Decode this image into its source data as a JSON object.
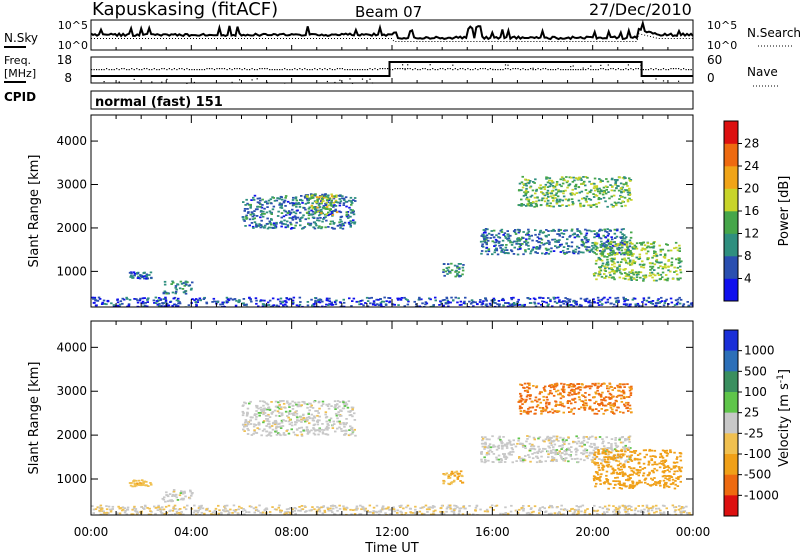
{
  "header": {
    "station": "Kapuskasing (fitACF)",
    "beam": "Beam 07",
    "date": "27/Dec/2010"
  },
  "noise_panel": {
    "left_label": "N.Sky",
    "right_label": "N.Search",
    "left_ticks": [
      "10^5",
      "10^0"
    ],
    "right_ticks": [
      "10^5",
      "10^0"
    ]
  },
  "freq_panel": {
    "left_label_1": "Freq.",
    "left_label_2": "[MHz]",
    "left_ticks": [
      "18",
      "8"
    ],
    "right_ticks": [
      "60",
      "0"
    ],
    "right_label": "Nave",
    "cpid_label": "CPID",
    "mode_text": "normal (fast) 151"
  },
  "chart_data": [
    {
      "type": "heatmap",
      "title": "",
      "xlabel": "Time UT",
      "ylabel": "Slant Range [km]",
      "x_ticks": [
        "00:00",
        "04:00",
        "08:00",
        "12:00",
        "16:00",
        "20:00",
        "00:00"
      ],
      "x_range_hours": [
        0,
        24
      ],
      "y_ticks": [
        1000,
        2000,
        3000,
        4000
      ],
      "ylim": [
        180,
        4600
      ],
      "colorbar": {
        "label": "Power [dB]",
        "ticks": [
          "4",
          "8",
          "12",
          "16",
          "20",
          "24",
          "28"
        ],
        "colors": [
          "#1010ee",
          "#2a4fb0",
          "#2f8f7f",
          "#46a64a",
          "#c8d42a",
          "#f0a418",
          "#ee6a10",
          "#dd1010"
        ]
      },
      "echo_regions": [
        {
          "t_start": 0.0,
          "t_end": 24.0,
          "r_start": 180,
          "r_end": 420,
          "mean_db": 5
        },
        {
          "t_start": 1.5,
          "t_end": 2.4,
          "r_start": 850,
          "r_end": 1000,
          "mean_db": 6
        },
        {
          "t_start": 2.8,
          "t_end": 4.0,
          "r_start": 500,
          "r_end": 800,
          "mean_db": 10
        },
        {
          "t_start": 6.0,
          "t_end": 10.5,
          "r_start": 2000,
          "r_end": 2800,
          "mean_db": 8
        },
        {
          "t_start": 8.5,
          "t_end": 9.8,
          "r_start": 2300,
          "r_end": 2800,
          "mean_db": 16
        },
        {
          "t_start": 14.0,
          "t_end": 14.8,
          "r_start": 900,
          "r_end": 1200,
          "mean_db": 10
        },
        {
          "t_start": 15.5,
          "t_end": 21.5,
          "r_start": 1400,
          "r_end": 2000,
          "mean_db": 8
        },
        {
          "t_start": 17.0,
          "t_end": 21.5,
          "r_start": 2500,
          "r_end": 3200,
          "mean_db": 14
        },
        {
          "t_start": 20.0,
          "t_end": 23.5,
          "r_start": 800,
          "r_end": 1700,
          "mean_db": 15
        }
      ]
    },
    {
      "type": "heatmap",
      "title": "",
      "xlabel": "Time UT",
      "ylabel": "Slant Range [km]",
      "x_ticks": [
        "00:00",
        "04:00",
        "08:00",
        "12:00",
        "16:00",
        "20:00",
        "00:00"
      ],
      "x_range_hours": [
        0,
        24
      ],
      "y_ticks": [
        1000,
        2000,
        3000,
        4000
      ],
      "ylim": [
        180,
        4600
      ],
      "colorbar": {
        "label": "Velocity [m s^-1]",
        "ticks": [
          "1000",
          "500",
          "100",
          "25",
          "-25",
          "-100",
          "-500",
          "-1000"
        ],
        "colors": [
          "#1a2fd8",
          "#2c6fb8",
          "#3a8f5f",
          "#5fc54a",
          "#c8c8c8",
          "#f0c050",
          "#f0a018",
          "#ee6a10",
          "#dd1010"
        ]
      },
      "echo_regions": [
        {
          "t_start": 0.0,
          "t_end": 24.0,
          "r_start": 180,
          "r_end": 420,
          "mean_velocity": -20
        },
        {
          "t_start": 1.5,
          "t_end": 2.4,
          "r_start": 850,
          "r_end": 1000,
          "mean_velocity": -80
        },
        {
          "t_start": 2.8,
          "t_end": 4.0,
          "r_start": 500,
          "r_end": 800,
          "mean_velocity": 0
        },
        {
          "t_start": 6.0,
          "t_end": 10.5,
          "r_start": 2000,
          "r_end": 2800,
          "mean_velocity": 0
        },
        {
          "t_start": 14.0,
          "t_end": 14.8,
          "r_start": 900,
          "r_end": 1200,
          "mean_velocity": -90
        },
        {
          "t_start": 15.5,
          "t_end": 21.5,
          "r_start": 1400,
          "r_end": 2000,
          "mean_velocity": 0
        },
        {
          "t_start": 17.0,
          "t_end": 21.5,
          "r_start": 2500,
          "r_end": 3200,
          "mean_velocity": -600
        },
        {
          "t_start": 20.0,
          "t_end": 23.5,
          "r_start": 800,
          "r_end": 1700,
          "mean_velocity": -200
        }
      ]
    }
  ]
}
